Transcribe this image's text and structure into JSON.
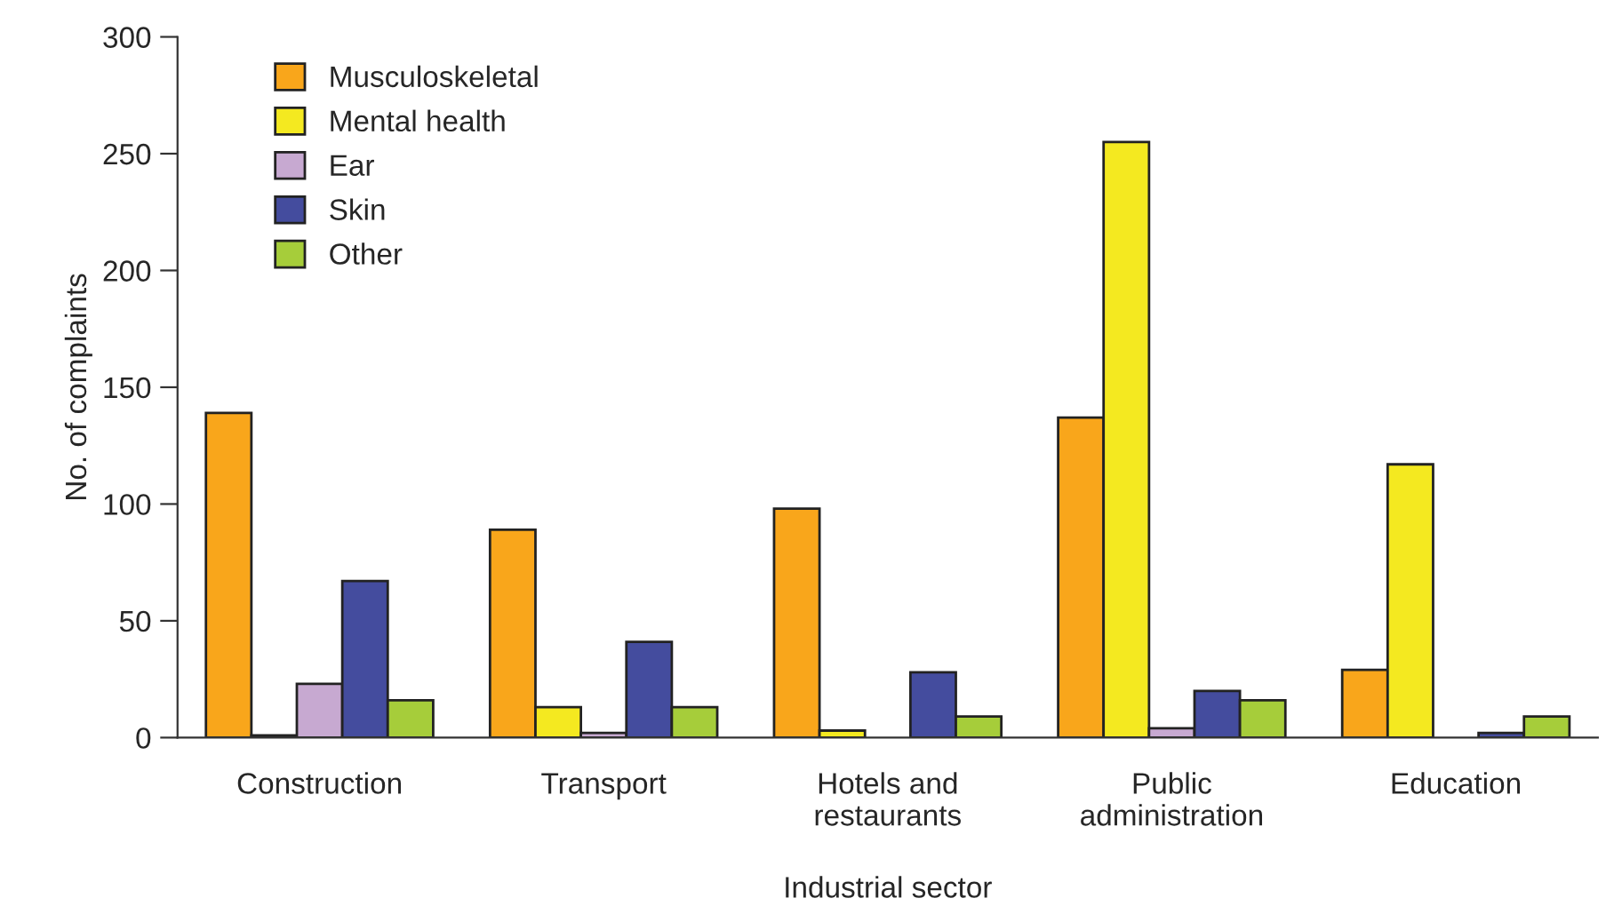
{
  "chart_data": {
    "type": "bar",
    "xlabel": "Industrial sector",
    "ylabel": "No. of complaints",
    "categories": [
      "Construction",
      "Transport",
      "Hotels and\nrestaurants",
      "Public\nadministration",
      "Education"
    ],
    "series": [
      {
        "name": "Musculoskeletal",
        "color": "#f9a61b",
        "values": [
          139,
          89,
          98,
          137,
          29
        ]
      },
      {
        "name": "Mental health",
        "color": "#f4e920",
        "values": [
          1,
          13,
          3,
          255,
          117
        ]
      },
      {
        "name": "Ear",
        "color": "#c7a9d1",
        "values": [
          23,
          2,
          0,
          4,
          0
        ]
      },
      {
        "name": "Skin",
        "color": "#444c9e",
        "values": [
          67,
          41,
          28,
          20,
          2
        ]
      },
      {
        "name": "Other",
        "color": "#a6cd3a",
        "values": [
          16,
          13,
          9,
          16,
          9
        ]
      }
    ],
    "ylim": [
      0,
      300
    ],
    "yticks": [
      0,
      50,
      100,
      150,
      200,
      250,
      300
    ],
    "grid": false,
    "legend": "top left"
  }
}
